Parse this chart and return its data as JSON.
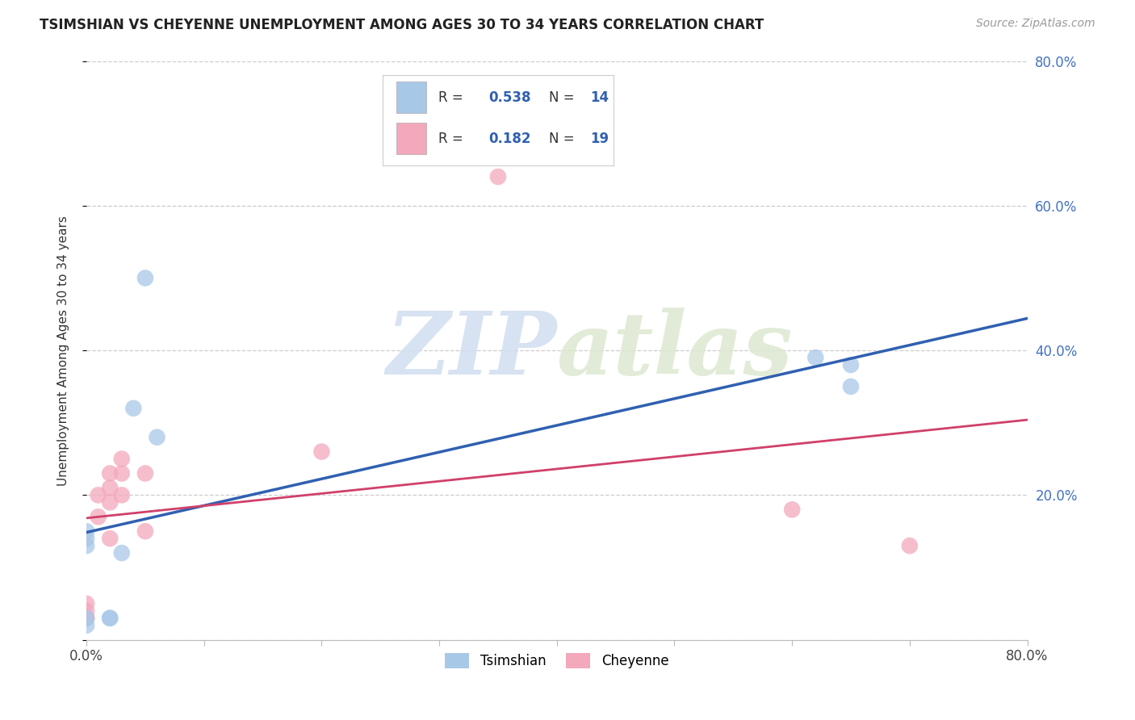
{
  "title": "TSIMSHIAN VS CHEYENNE UNEMPLOYMENT AMONG AGES 30 TO 34 YEARS CORRELATION CHART",
  "source": "Source: ZipAtlas.com",
  "ylabel": "Unemployment Among Ages 30 to 34 years",
  "xlim": [
    0.0,
    0.8
  ],
  "ylim": [
    0.0,
    0.8
  ],
  "tsimshian_x": [
    0.0,
    0.0,
    0.0,
    0.02,
    0.02,
    0.03,
    0.04,
    0.05,
    0.06,
    0.62,
    0.65,
    0.65,
    0.0,
    0.0
  ],
  "tsimshian_y": [
    0.15,
    0.13,
    0.14,
    0.03,
    0.03,
    0.12,
    0.32,
    0.5,
    0.28,
    0.39,
    0.38,
    0.35,
    0.03,
    0.02
  ],
  "cheyenne_x": [
    0.0,
    0.0,
    0.0,
    0.0,
    0.01,
    0.01,
    0.02,
    0.02,
    0.02,
    0.02,
    0.03,
    0.03,
    0.03,
    0.05,
    0.05,
    0.2,
    0.35,
    0.6,
    0.7
  ],
  "cheyenne_y": [
    0.05,
    0.04,
    0.03,
    0.03,
    0.2,
    0.17,
    0.23,
    0.21,
    0.19,
    0.14,
    0.25,
    0.23,
    0.2,
    0.23,
    0.15,
    0.26,
    0.64,
    0.18,
    0.13
  ],
  "tsimshian_color": "#a8c8e8",
  "cheyenne_color": "#f4a8bc",
  "tsimshian_line_color": "#3060b0",
  "cheyenne_line_color": "#d0406a",
  "tsimshian_R": 0.538,
  "tsimshian_N": 14,
  "cheyenne_R": 0.182,
  "cheyenne_N": 19,
  "legend_label_tsimshian": "Tsimshian",
  "legend_label_cheyenne": "Cheyenne",
  "watermark_zip": "ZIP",
  "watermark_atlas": "atlas",
  "background_color": "#ffffff",
  "grid_color": "#cccccc",
  "ytick_color": "#4472c4",
  "title_fontsize": 12,
  "axis_label_fontsize": 11,
  "tick_fontsize": 12
}
